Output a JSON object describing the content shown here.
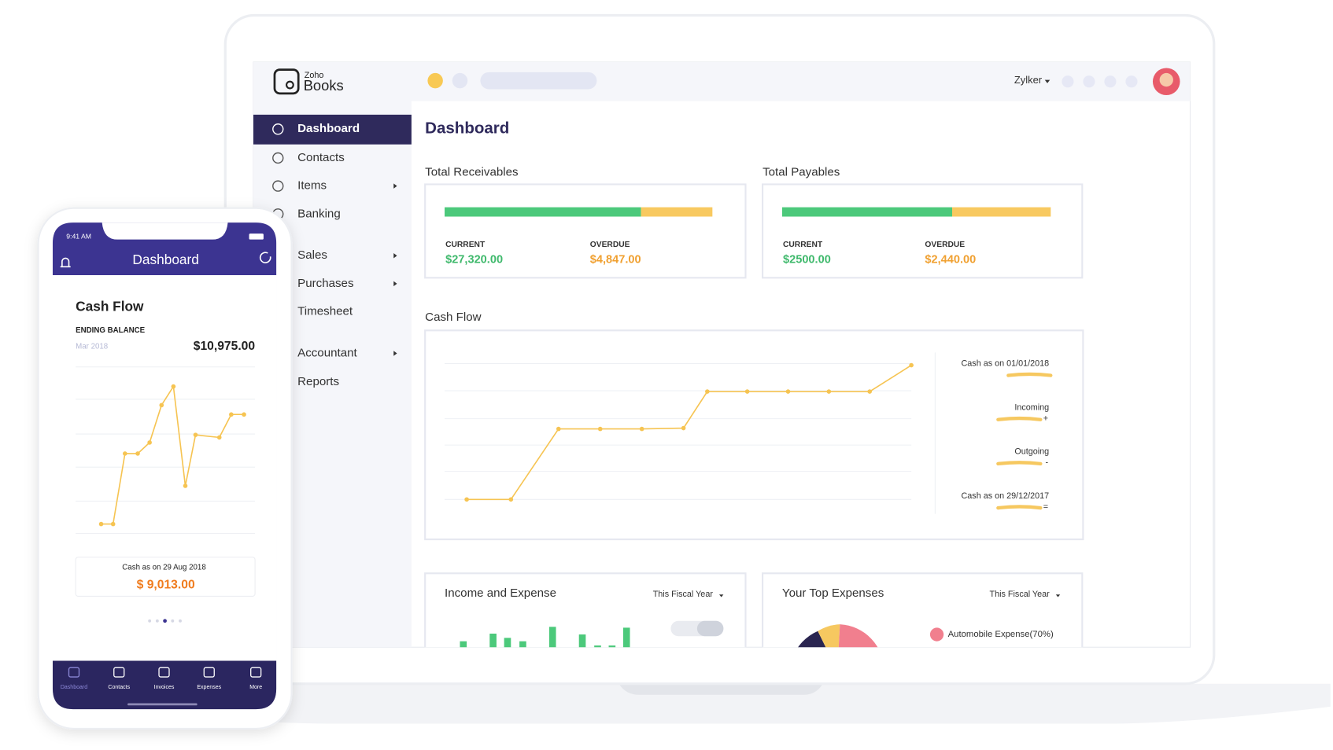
{
  "app": {
    "brand_small": "Zoho",
    "brand": "Books",
    "user": "Zylker"
  },
  "sidebar": {
    "items": [
      "Dashboard",
      "Contacts",
      "Items",
      "Banking",
      "Sales",
      "Purchases",
      "Timesheet",
      "Accountant",
      "Reports"
    ]
  },
  "main": {
    "title": "Dashboard",
    "receivables": {
      "title": "Total Receivables",
      "current_label": "CURRENT",
      "current": "$27,320.00",
      "overdue_label": "OVERDUE",
      "overdue": "$4,847.00"
    },
    "payables": {
      "title": "Total Payables",
      "current_label": "CURRENT",
      "current": "$2500.00",
      "overdue_label": "OVERDUE",
      "overdue": "$2,440.00"
    },
    "cash_flow": {
      "title": "Cash Flow",
      "legend": [
        "Cash as on  01/01/2018",
        "Incoming",
        "Outgoing",
        "Cash as on  29/12/2017"
      ],
      "signs": [
        "+",
        "-",
        "="
      ]
    },
    "income_expense": {
      "title": "Income and Expense",
      "period": "This Fiscal Year"
    },
    "top_expenses": {
      "title": "Your Top Expenses",
      "period": "This Fiscal Year",
      "legend": "Automobile Expense(70%)"
    }
  },
  "phone": {
    "time": "9:41 AM",
    "title": "Dashboard",
    "card_title": "Cash Flow",
    "ending_balance": "ENDING BALANCE",
    "month": "Mar 2018",
    "balance": "$10,975.00",
    "cash_as_on": "Cash as on 29 Aug 2018",
    "cash": "$ 9,013.00",
    "tabs": [
      "Dashboard",
      "Contacts",
      "Invoices",
      "Expenses",
      "More"
    ]
  }
}
